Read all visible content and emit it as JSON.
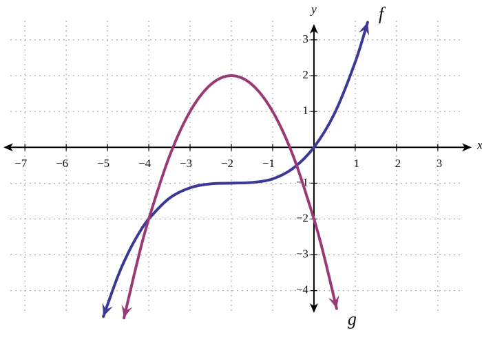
{
  "chart_data": {
    "type": "line",
    "x_label": "x",
    "y_label": "y",
    "xlim": [
      -7.52,
      3.82
    ],
    "ylim": [
      -4.62,
      3.44
    ],
    "xticks": [
      {
        "value": -7,
        "label": "−7"
      },
      {
        "value": -6,
        "label": "−6"
      },
      {
        "value": -5,
        "label": "−5"
      },
      {
        "value": -4,
        "label": "−4"
      },
      {
        "value": -3,
        "label": "−3"
      },
      {
        "value": -2,
        "label": "−2"
      },
      {
        "value": -1,
        "label": "−1"
      },
      1,
      2,
      3
    ],
    "yticks": [
      {
        "value": -4,
        "label": "−4"
      },
      {
        "value": -3,
        "label": "−3"
      },
      {
        "value": -2,
        "label": "−2"
      },
      {
        "value": -1,
        "label": "−1"
      },
      1,
      2,
      3
    ],
    "grid": true,
    "series": [
      {
        "name": "f",
        "color": "#3c3896",
        "x": [
          -5.1,
          -4.75,
          -4.5,
          -4.25,
          -4,
          -3.5,
          -3,
          -2.5,
          -2,
          -1.5,
          -1,
          -0.5,
          0,
          0.5,
          1,
          1.3
        ],
        "values": [
          -4.72,
          -3.6,
          -2.95,
          -2.42,
          -2,
          -1.42,
          -1.13,
          -1.02,
          -1,
          -0.98,
          -0.88,
          -0.58,
          0,
          0.95,
          2.38,
          3.49
        ]
      },
      {
        "name": "g",
        "color": "#9a3a74",
        "x": [
          -4.6,
          -4.25,
          -4,
          -3.5,
          -3,
          -2.5,
          -2,
          -1.5,
          -1,
          -0.5,
          0,
          0.25,
          0.55
        ],
        "values": [
          -4.76,
          -3.06,
          -2,
          -0.25,
          1,
          1.75,
          2,
          1.75,
          1,
          -0.25,
          -2,
          -3.06,
          -4.5
        ]
      }
    ]
  }
}
